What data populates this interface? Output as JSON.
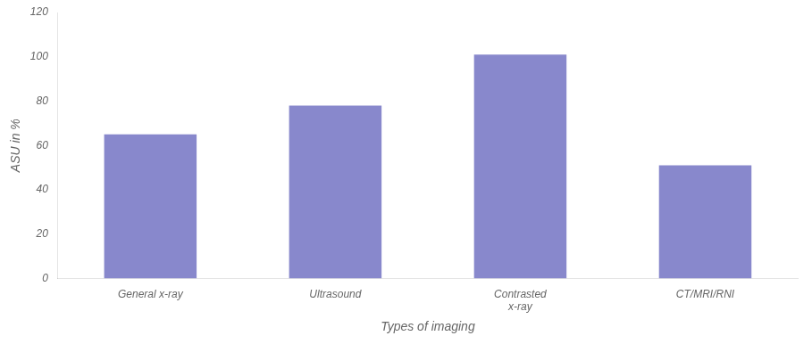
{
  "chart_data": {
    "type": "bar",
    "categories": [
      "General x-ray",
      "Ultrasound",
      "Contrasted\nx-ray",
      "CT/MRI/RNI"
    ],
    "values": [
      65,
      78,
      101,
      51
    ],
    "color": "#8888cc",
    "xlabel": "Types of imaging",
    "ylabel": "ASU in %",
    "ylim": [
      0,
      120
    ],
    "yticks": [
      0,
      20,
      40,
      60,
      80,
      100,
      120
    ],
    "grid": false
  }
}
